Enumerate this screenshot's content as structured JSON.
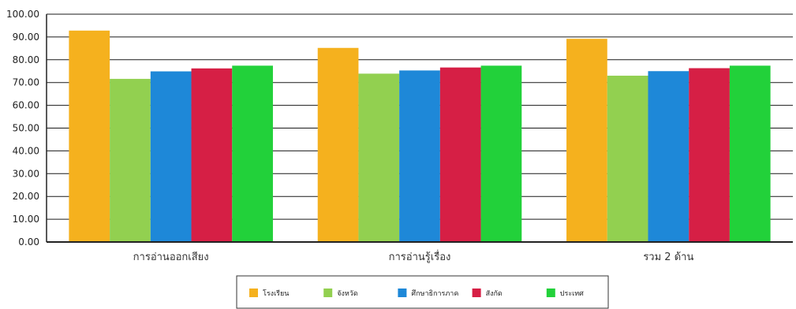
{
  "chart_data": {
    "type": "bar",
    "categories": [
      "การอ่านออกเสียง",
      "การอ่านรู้เรื่อง",
      "รวม 2 ด้าน"
    ],
    "series": [
      {
        "name": "โรงเรียน",
        "color": "#F5B11E",
        "values": [
          92.8,
          85.2,
          89.2
        ]
      },
      {
        "name": "จังหวัด",
        "color": "#92D050",
        "values": [
          71.6,
          73.9,
          73.0
        ]
      },
      {
        "name": "ศึกษาธิการภาค",
        "color": "#1E88D8",
        "values": [
          74.9,
          75.3,
          75.0
        ]
      },
      {
        "name": "สังกัด",
        "color": "#D61F45",
        "values": [
          76.2,
          76.6,
          76.3
        ]
      },
      {
        "name": "ประเทศ",
        "color": "#22D13A",
        "values": [
          77.4,
          77.4,
          77.4
        ]
      }
    ],
    "ylim": [
      0,
      100
    ],
    "yticks": [
      "0.00",
      "10.00",
      "20.00",
      "30.00",
      "40.00",
      "50.00",
      "60.00",
      "70.00",
      "80.00",
      "90.00",
      "100.00"
    ],
    "grid": true,
    "legend_position": "bottom",
    "title": "",
    "xlabel": "",
    "ylabel": ""
  }
}
